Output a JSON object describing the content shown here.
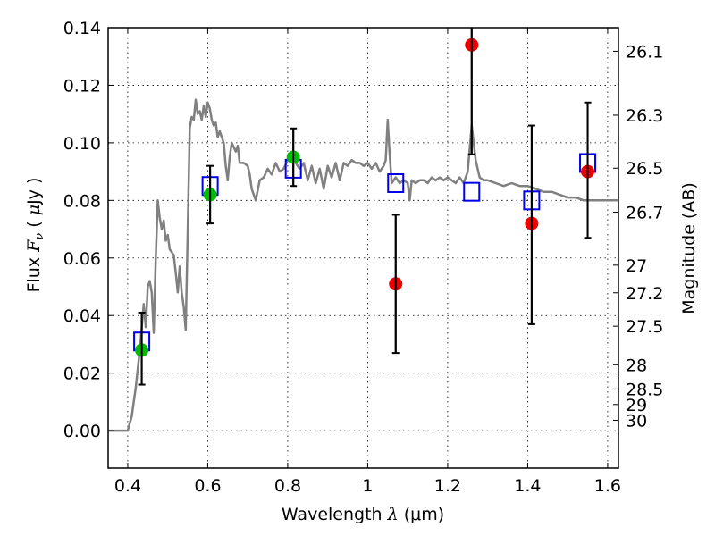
{
  "chart_data": {
    "type": "scatter",
    "title": "",
    "xlabel": "Wavelength  λ (μm)",
    "xlabel_parts": {
      "text": "Wavelength  ",
      "symbol": "λ",
      "unit": " (μm)"
    },
    "ylabel": "Flux  Fν  ( μJy )",
    "ylabel_parts": {
      "text": "Flux  ",
      "symbol": "F",
      "sub": "ν",
      "unit_open": "  ( ",
      "mu": "μ",
      "unit_rest": "Jy )"
    },
    "y2label": "Magnitude (AB)",
    "xlim": [
      0.351,
      1.627
    ],
    "ylim": [
      -0.013,
      0.14
    ],
    "grid": true,
    "legend": "none",
    "xticks": [
      0.4,
      0.6,
      0.8,
      1.0,
      1.2,
      1.4,
      1.6
    ],
    "xtick_labels": [
      "0.4",
      "0.6",
      "0.8",
      "1",
      "1.2",
      "1.4",
      "1.6"
    ],
    "yticks": [
      0.0,
      0.02,
      0.04,
      0.06,
      0.08,
      0.1,
      0.12,
      0.14
    ],
    "ytick_labels": [
      "0.00",
      "0.02",
      "0.04",
      "0.06",
      "0.08",
      "0.10",
      "0.12",
      "0.14"
    ],
    "y2ticks": [
      {
        "label": "26.1",
        "flux": 0.1318
      },
      {
        "label": "26.3",
        "flux": 0.1096
      },
      {
        "label": "26.5",
        "flux": 0.0912
      },
      {
        "label": "26.7",
        "flux": 0.0759
      },
      {
        "label": "27",
        "flux": 0.0575
      },
      {
        "label": "27.2",
        "flux": 0.0479
      },
      {
        "label": "27.5",
        "flux": 0.0363
      },
      {
        "label": "28",
        "flux": 0.0229
      },
      {
        "label": "28.5",
        "flux": 0.0145
      },
      {
        "label": "29",
        "flux": 0.0091
      },
      {
        "label": "30",
        "flux": 0.0036
      }
    ],
    "colors": {
      "spectrum": "#808080",
      "model_box": "#0000ee",
      "detection": "#00bb00",
      "low_sn": "#ee0000",
      "errorbar": "#000000"
    },
    "series": [
      {
        "name": "model-spectrum",
        "kind": "line",
        "x": [
          0.351,
          0.4,
          0.41,
          0.42,
          0.43,
          0.435,
          0.44,
          0.445,
          0.45,
          0.455,
          0.46,
          0.465,
          0.47,
          0.475,
          0.48,
          0.485,
          0.49,
          0.495,
          0.5,
          0.505,
          0.51,
          0.515,
          0.52,
          0.525,
          0.53,
          0.535,
          0.54,
          0.545,
          0.55,
          0.555,
          0.56,
          0.565,
          0.57,
          0.575,
          0.58,
          0.585,
          0.59,
          0.595,
          0.6,
          0.605,
          0.61,
          0.615,
          0.62,
          0.625,
          0.63,
          0.64,
          0.645,
          0.65,
          0.655,
          0.66,
          0.67,
          0.675,
          0.68,
          0.69,
          0.7,
          0.705,
          0.71,
          0.72,
          0.73,
          0.74,
          0.75,
          0.76,
          0.77,
          0.78,
          0.79,
          0.8,
          0.81,
          0.82,
          0.83,
          0.84,
          0.85,
          0.86,
          0.87,
          0.88,
          0.89,
          0.9,
          0.91,
          0.92,
          0.93,
          0.94,
          0.95,
          0.96,
          0.97,
          0.98,
          0.99,
          1.0,
          1.01,
          1.02,
          1.03,
          1.04,
          1.045,
          1.05,
          1.055,
          1.06,
          1.07,
          1.08,
          1.09,
          1.1,
          1.105,
          1.11,
          1.12,
          1.13,
          1.14,
          1.15,
          1.16,
          1.17,
          1.18,
          1.19,
          1.2,
          1.21,
          1.22,
          1.23,
          1.24,
          1.25,
          1.26,
          1.27,
          1.28,
          1.29,
          1.3,
          1.32,
          1.34,
          1.36,
          1.38,
          1.4,
          1.42,
          1.44,
          1.46,
          1.48,
          1.5,
          1.52,
          1.54,
          1.56,
          1.58,
          1.6,
          1.627
        ],
        "y": [
          0.0,
          0.0,
          0.005,
          0.015,
          0.028,
          0.036,
          0.044,
          0.036,
          0.05,
          0.052,
          0.048,
          0.034,
          0.06,
          0.08,
          0.074,
          0.07,
          0.073,
          0.066,
          0.068,
          0.063,
          0.062,
          0.061,
          0.055,
          0.048,
          0.057,
          0.048,
          0.043,
          0.035,
          0.07,
          0.105,
          0.109,
          0.108,
          0.115,
          0.11,
          0.111,
          0.108,
          0.113,
          0.109,
          0.114,
          0.112,
          0.108,
          0.106,
          0.107,
          0.102,
          0.104,
          0.1,
          0.092,
          0.087,
          0.095,
          0.1,
          0.097,
          0.099,
          0.093,
          0.093,
          0.092,
          0.089,
          0.084,
          0.08,
          0.087,
          0.088,
          0.091,
          0.089,
          0.093,
          0.09,
          0.091,
          0.094,
          0.095,
          0.093,
          0.091,
          0.093,
          0.087,
          0.092,
          0.086,
          0.091,
          0.084,
          0.092,
          0.088,
          0.093,
          0.087,
          0.093,
          0.092,
          0.094,
          0.093,
          0.093,
          0.092,
          0.093,
          0.091,
          0.093,
          0.09,
          0.092,
          0.094,
          0.108,
          0.096,
          0.086,
          0.088,
          0.086,
          0.087,
          0.086,
          0.08,
          0.087,
          0.086,
          0.087,
          0.087,
          0.086,
          0.088,
          0.087,
          0.088,
          0.087,
          0.088,
          0.087,
          0.086,
          0.088,
          0.086,
          0.09,
          0.106,
          0.094,
          0.088,
          0.087,
          0.087,
          0.086,
          0.085,
          0.086,
          0.085,
          0.085,
          0.084,
          0.083,
          0.083,
          0.082,
          0.081,
          0.081,
          0.08,
          0.08,
          0.08,
          0.08,
          0.08
        ]
      },
      {
        "name": "model-photometry",
        "kind": "open-square",
        "x": [
          0.435,
          0.606,
          0.814,
          1.07,
          1.26,
          1.41,
          1.55
        ],
        "y": [
          0.031,
          0.085,
          0.091,
          0.086,
          0.083,
          0.08,
          0.093
        ]
      },
      {
        "name": "detections",
        "kind": "filled-circle",
        "color_key": "detection",
        "x": [
          0.435,
          0.606,
          0.814
        ],
        "y": [
          0.028,
          0.082,
          0.095
        ],
        "err_low": [
          0.016,
          0.072,
          0.085
        ],
        "err_high": [
          0.041,
          0.092,
          0.105
        ]
      },
      {
        "name": "low-significance",
        "kind": "filled-circle",
        "color_key": "low_sn",
        "x": [
          1.07,
          1.26,
          1.41,
          1.55
        ],
        "y": [
          0.051,
          0.134,
          0.072,
          0.09
        ],
        "err_low": [
          0.027,
          0.096,
          0.037,
          0.067
        ],
        "err_high": [
          0.075,
          0.172,
          0.106,
          0.114
        ]
      }
    ]
  }
}
